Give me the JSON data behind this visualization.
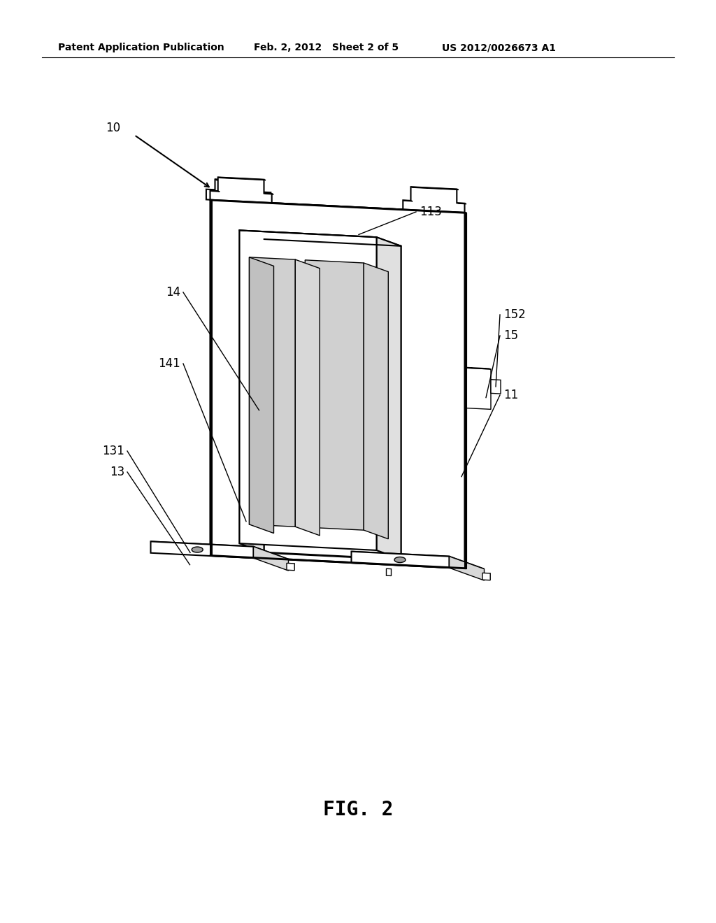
{
  "header_left": "Patent Application Publication",
  "header_mid": "Feb. 2, 2012   Sheet 2 of 5",
  "header_right": "US 2012/0026673 A1",
  "fig_label": "FIG. 2",
  "background_color": "#ffffff",
  "line_color": "#000000",
  "lw": 1.5,
  "lw_thin": 1.0,
  "label_10": "10",
  "label_11": "11",
  "label_13": "13",
  "label_14": "14",
  "label_15": "15",
  "label_131": "131",
  "label_141": "141",
  "label_152": "152",
  "label_113": "113"
}
